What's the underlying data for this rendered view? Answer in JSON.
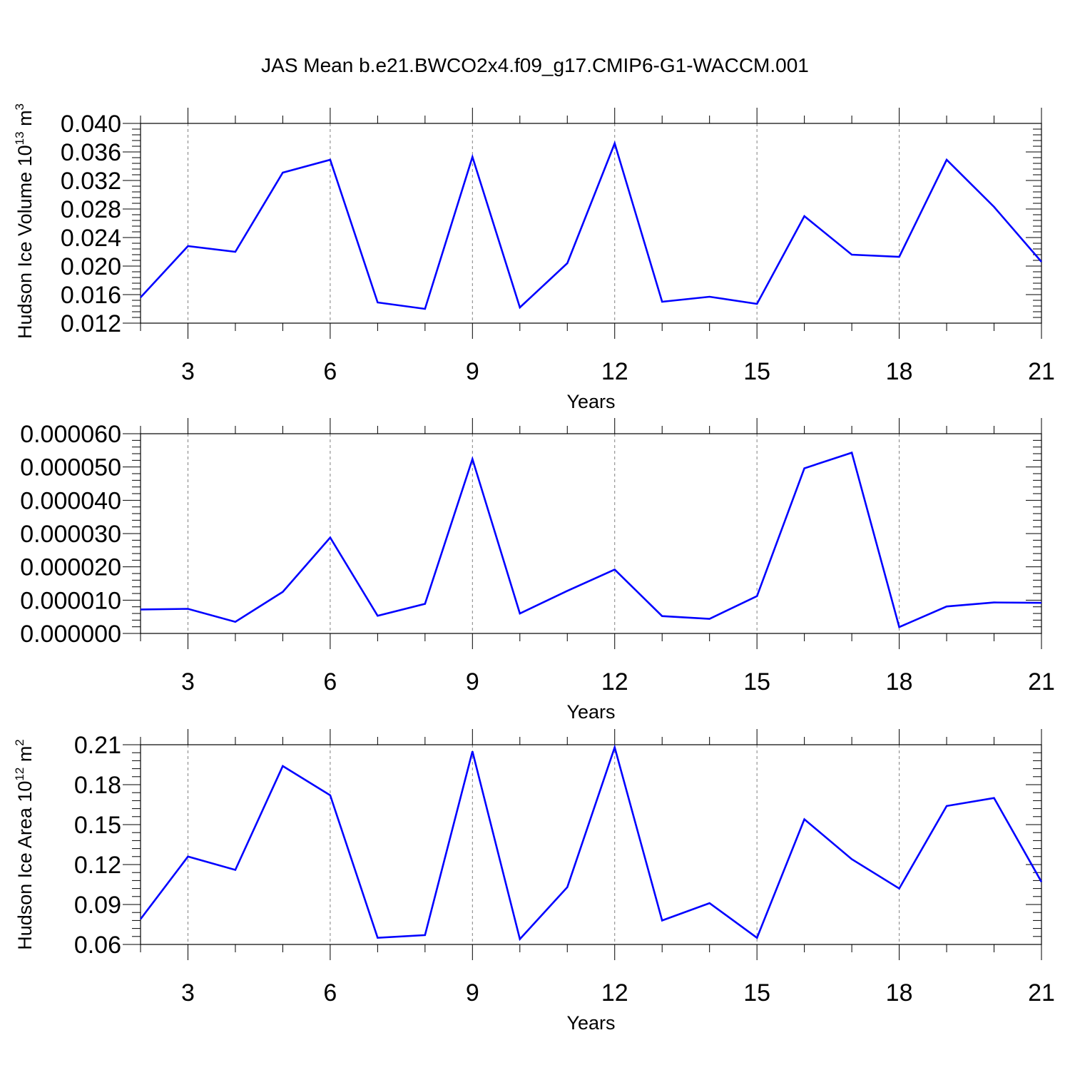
{
  "title": "JAS Mean b.e21.BWCO2x4.f09_g17.CMIP6-G1-WACCM.001",
  "style": {
    "line_color": "#0000ff",
    "grid_color": "#808080",
    "axis_color": "#000000"
  },
  "panels": [
    {
      "ylabel_main": "Hudson Ice Volume 10",
      "ylabel_exp": "13",
      "ylabel_unit": " m",
      "ylabel_unit_exp": "3",
      "xlabel": "Years"
    },
    {
      "ylabel_main": "",
      "ylabel_exp": "",
      "ylabel_unit": "",
      "ylabel_unit_exp": "",
      "xlabel": "Years"
    },
    {
      "ylabel_main": "Hudson Ice Area 10",
      "ylabel_exp": "12",
      "ylabel_unit": " m",
      "ylabel_unit_exp": "2",
      "xlabel": "Years"
    }
  ],
  "chart_data": [
    {
      "type": "line",
      "xlabel": "Years",
      "ylabel": "Hudson Ice Volume 10^13 m^3",
      "xlim": [
        2,
        21
      ],
      "ylim": [
        0.012,
        0.04
      ],
      "x_ticks": [
        3,
        6,
        9,
        12,
        15,
        18,
        21
      ],
      "x_tick_labels": [
        "3",
        "6",
        "9",
        "12",
        "15",
        "18",
        "21"
      ],
      "y_ticks": [
        0.012,
        0.016,
        0.02,
        0.024,
        0.028,
        0.032,
        0.036,
        0.04
      ],
      "y_tick_labels": [
        "0.012",
        "0.016",
        "0.020",
        "0.024",
        "0.028",
        "0.032",
        "0.036",
        "0.040"
      ],
      "grid": "vertical dashed at major x ticks",
      "x": [
        2,
        3,
        4,
        5,
        6,
        7,
        8,
        9,
        10,
        11,
        12,
        13,
        14,
        15,
        16,
        17,
        18,
        19,
        20,
        21
      ],
      "series": [
        {
          "values": [
            0.0156,
            0.0228,
            0.022,
            0.0331,
            0.0349,
            0.0149,
            0.014,
            0.0353,
            0.0142,
            0.0204,
            0.0372,
            0.015,
            0.0157,
            0.0147,
            0.027,
            0.0216,
            0.0213,
            0.0349,
            0.0283,
            0.0206
          ]
        }
      ]
    },
    {
      "type": "line",
      "xlabel": "Years",
      "ylabel": "",
      "xlim": [
        2,
        21
      ],
      "ylim": [
        0.0,
        6e-05
      ],
      "x_ticks": [
        3,
        6,
        9,
        12,
        15,
        18,
        21
      ],
      "x_tick_labels": [
        "3",
        "6",
        "9",
        "12",
        "15",
        "18",
        "21"
      ],
      "y_ticks": [
        0.0,
        1e-05,
        2e-05,
        3e-05,
        4e-05,
        5e-05,
        6e-05
      ],
      "y_tick_labels": [
        "0.000000",
        "0.000010",
        "0.000020",
        "0.000030",
        "0.000040",
        "0.000050",
        "0.000060"
      ],
      "grid": "vertical dashed at major x ticks",
      "x": [
        2,
        3,
        4,
        5,
        6,
        7,
        8,
        9,
        10,
        11,
        12,
        13,
        14,
        15,
        16,
        17,
        18,
        19,
        20,
        21
      ],
      "series": [
        {
          "values": [
            7.2e-06,
            7.4e-06,
            3.5e-06,
            1.25e-05,
            2.88e-05,
            5.3e-06,
            8.9e-06,
            5.24e-05,
            6e-06,
            1.28e-05,
            1.92e-05,
            5.2e-06,
            4.4e-06,
            1.12e-05,
            4.96e-05,
            5.43e-05,
            1.9e-06,
            8.1e-06,
            9.3e-06,
            9.2e-06
          ]
        }
      ]
    },
    {
      "type": "line",
      "xlabel": "Years",
      "ylabel": "Hudson Ice Area 10^12 m^2",
      "xlim": [
        2,
        21
      ],
      "ylim": [
        0.06,
        0.21
      ],
      "x_ticks": [
        3,
        6,
        9,
        12,
        15,
        18,
        21
      ],
      "x_tick_labels": [
        "3",
        "6",
        "9",
        "12",
        "15",
        "18",
        "21"
      ],
      "y_ticks": [
        0.06,
        0.09,
        0.12,
        0.15,
        0.18,
        0.21
      ],
      "y_tick_labels": [
        "0.06",
        "0.09",
        "0.12",
        "0.15",
        "0.18",
        "0.21"
      ],
      "grid": "vertical dashed at major x ticks",
      "x": [
        2,
        3,
        4,
        5,
        6,
        7,
        8,
        9,
        10,
        11,
        12,
        13,
        14,
        15,
        16,
        17,
        18,
        19,
        20,
        21
      ],
      "series": [
        {
          "values": [
            0.079,
            0.126,
            0.116,
            0.194,
            0.172,
            0.065,
            0.067,
            0.205,
            0.064,
            0.103,
            0.208,
            0.078,
            0.091,
            0.065,
            0.154,
            0.124,
            0.102,
            0.164,
            0.17,
            0.107
          ]
        }
      ]
    }
  ]
}
